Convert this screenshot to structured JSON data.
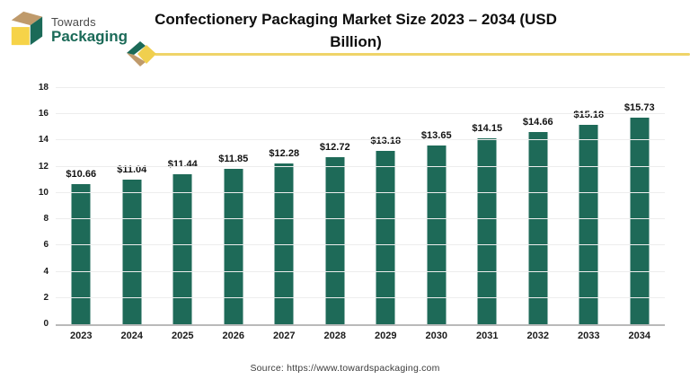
{
  "brand": {
    "name_line1": "Towards",
    "name_line2": "Packaging"
  },
  "header": {
    "title": "Confectionery Packaging Market Size 2023 – 2034 (USD Billion)"
  },
  "footer": {
    "source": "Source: https://www.towardspackaging.com"
  },
  "colors": {
    "bar": "#1e6a58",
    "logo_green": "#1b6a58",
    "logo_tan": "#bf9a6b",
    "logo_yellow": "#f6d348",
    "accent_yellow": "#efd469",
    "gridline": "#ededed",
    "baseline": "#b9b9b9"
  },
  "chart_data": {
    "type": "bar",
    "title": "Confectionery Packaging Market Size 2023 – 2034 (USD Billion)",
    "categories": [
      "2023",
      "2024",
      "2025",
      "2026",
      "2027",
      "2028",
      "2029",
      "2030",
      "2031",
      "2032",
      "2033",
      "2034"
    ],
    "values": [
      10.66,
      11.04,
      11.44,
      11.85,
      12.28,
      12.72,
      13.18,
      13.65,
      14.15,
      14.66,
      15.18,
      15.73
    ],
    "labels": [
      "$10.66",
      "$11.04",
      "$11.44",
      "$11.85",
      "$12.28",
      "$12.72",
      "$13.18",
      "$13.65",
      "$14.15",
      "$14.66",
      "$15.18",
      "$15.73"
    ],
    "xlabel": "",
    "ylabel": "",
    "ylim": [
      0,
      18
    ],
    "ytick_step": 2,
    "grid": true,
    "legend": "none",
    "bar_color": "#1e6a58"
  }
}
